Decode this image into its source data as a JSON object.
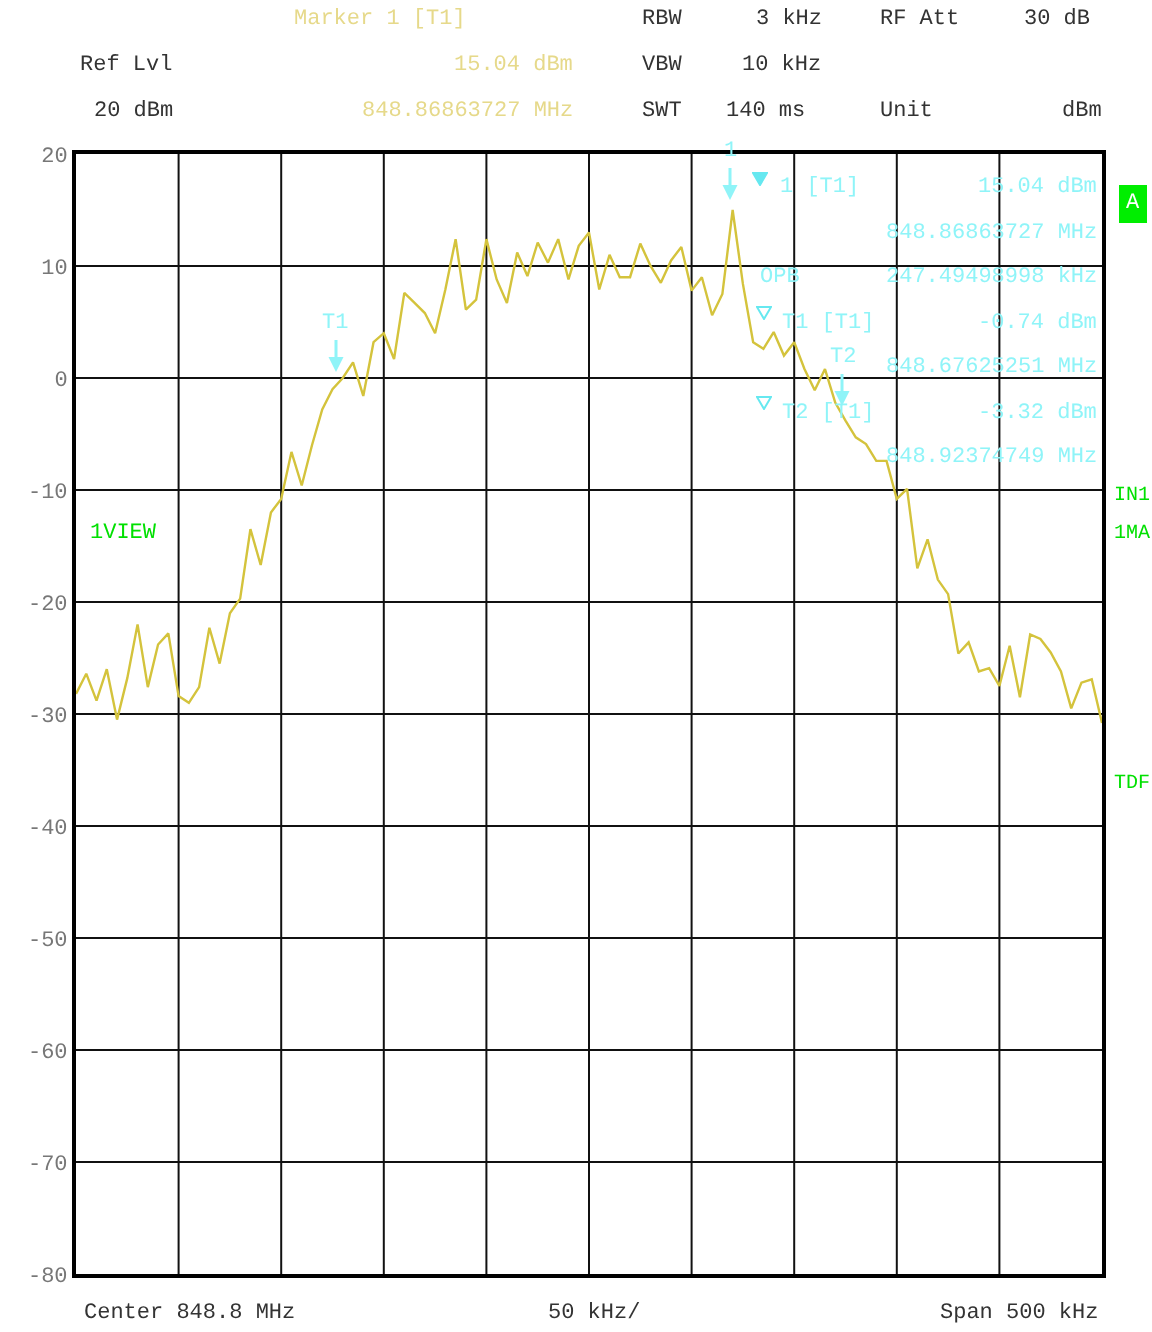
{
  "chart_data": {
    "type": "line",
    "categories": [
      null,
      null,
      null,
      null,
      null,
      null,
      null,
      null,
      null,
      null,
      null,
      null,
      null,
      null,
      null,
      null,
      null,
      null,
      null,
      null,
      null,
      null,
      null,
      null,
      null,
      null,
      null,
      null,
      null,
      null,
      null,
      null,
      null,
      null,
      null,
      null,
      null,
      null,
      null,
      null,
      null,
      null,
      null,
      null,
      null,
      null,
      null,
      null,
      null,
      null,
      null,
      null,
      null,
      null,
      null,
      null,
      null,
      null,
      null,
      null,
      null,
      null,
      null,
      null,
      null,
      null,
      null,
      null,
      null,
      null,
      null,
      null,
      null,
      null,
      null,
      null,
      null,
      null,
      null,
      null,
      null,
      null,
      null,
      null,
      null,
      null,
      null,
      null,
      null,
      null,
      null,
      null,
      null,
      null,
      null,
      null,
      null,
      null,
      null,
      null,
      null
    ],
    "series": [
      {
        "color": "#d4c33c",
        "values": [
          -28.2,
          -26.4,
          -28.8,
          -26,
          -30.5,
          -26.8,
          -22,
          -27.6,
          -23.8,
          -22.8,
          -28.4,
          -29,
          -27.6,
          -22.3,
          -25.5,
          -21,
          -19.7,
          -13.5,
          -16.7,
          -12,
          -10.8,
          -6.6,
          -9.6,
          -6,
          -2.8,
          -1,
          0,
          1.4,
          -1.6,
          3.2,
          4,
          1.7,
          7.6,
          6.7,
          5.8,
          4,
          7.9,
          12.4,
          6.1,
          7,
          12.4,
          8.8,
          6.7,
          11.2,
          9.1,
          12.1,
          10.3,
          12.4,
          8.8,
          11.8,
          13,
          7.9,
          11,
          9,
          9,
          12,
          10,
          8.5,
          10.5,
          11.7,
          7.8,
          9,
          5.6,
          7.5,
          15,
          8.4,
          3.2,
          2.6,
          4.1,
          2,
          3.2,
          0.8,
          -1.1,
          0.8,
          -2.2,
          -3.8,
          -5.3,
          -5.9,
          -7.4,
          -7.4,
          -10.8,
          -9.9,
          -17,
          -14.4,
          -18,
          -19.3,
          -24.6,
          -23.6,
          -26.2,
          -25.9,
          -27.5,
          -23.9,
          -28.5,
          -22.9,
          -23.3,
          -24.5,
          -26.2,
          -29.5,
          -27.2,
          -26.9,
          -30.8
        ]
      }
    ],
    "ylim": [
      -80,
      20
    ],
    "yticks": [
      -80,
      -70,
      -60,
      -50,
      -40,
      -30,
      -20,
      -10,
      0,
      10,
      20
    ],
    "grid": true,
    "tick_labels": "y",
    "annotations": [
      "Marker 1 [T1]",
      "15.04 dBm",
      "848.86863727 MHz",
      "RBW",
      "3 kHz",
      "RF Att",
      "30 dB",
      "Ref Lvl",
      "VBW",
      "10 kHz",
      "20 dBm",
      "SWT",
      "140 ms",
      "Unit",
      "dBm",
      "1 [T1]",
      "15.04 dBm",
      "848.86863727 MHz",
      "OPB",
      "247.49498998 kHz",
      "T1 [T1]",
      "-0.74 dBm",
      "848.67625251 MHz",
      "T2 [T1]",
      "-3.32 dBm",
      "848.92374749 MHz",
      "1VIEW",
      "A",
      "IN1",
      "1MA",
      "TDF",
      "Center 848.8 MHz",
      "50 kHz/",
      "Span 500 kHz",
      "1",
      "T1",
      "T2"
    ]
  }
}
